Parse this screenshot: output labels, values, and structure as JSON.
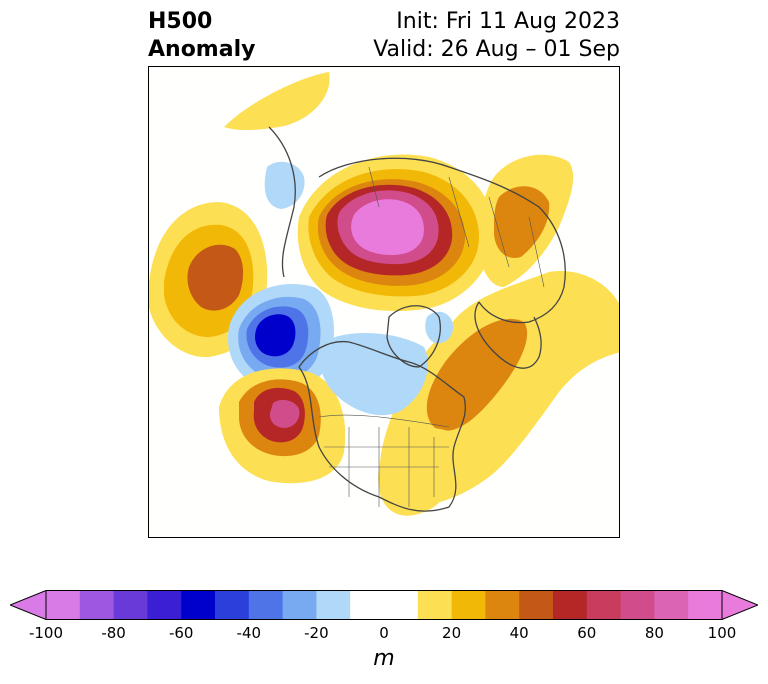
{
  "header": {
    "title_line1": "H500",
    "title_line2": "Anomaly",
    "init_label": "Init: Fri 11 Aug 2023",
    "valid_label": "Valid: 26 Aug – 01 Sep"
  },
  "map": {
    "projection": "north-polar-stereographic",
    "variable": "500 hPa geopotential height anomaly",
    "features": [
      {
        "name": "positive-anomaly-eastern-siberia",
        "peak": 80
      },
      {
        "name": "positive-anomaly-north-pacific",
        "peak": 50
      },
      {
        "name": "negative-anomaly-gulf-of-alaska",
        "peak": -60
      },
      {
        "name": "positive-anomaly-western-canada",
        "peak": 70
      },
      {
        "name": "negative-anomaly-hudson-bay",
        "peak": -20
      },
      {
        "name": "positive-anomaly-north-atlantic",
        "peak": 40
      },
      {
        "name": "positive-anomaly-europe",
        "peak": 30
      }
    ]
  },
  "colorbar": {
    "unit": "m",
    "ticks": [
      "-100",
      "-80",
      "-60",
      "-40",
      "-20",
      "0",
      "20",
      "40",
      "60",
      "80",
      "100"
    ],
    "colors": [
      "#d97be6",
      "#9d57e0",
      "#6a3ad8",
      "#3b1fd4",
      "#0000cc",
      "#2b3fdb",
      "#4f74e8",
      "#77aaf0",
      "#b0d8f8",
      "#ffffff",
      "#ffffff",
      "#fddf53",
      "#f2b807",
      "#dc8610",
      "#c45816",
      "#b52626",
      "#c93c5e",
      "#d04c8b",
      "#db64b5",
      "#e97bdc"
    ],
    "extend": "both"
  }
}
